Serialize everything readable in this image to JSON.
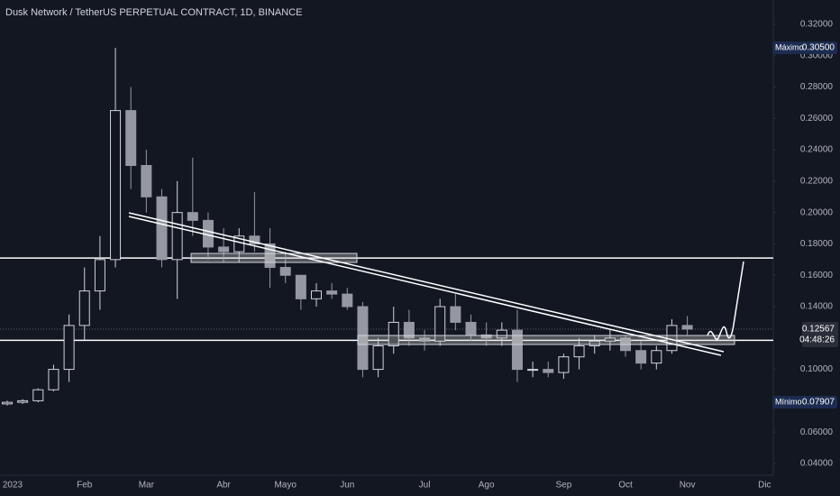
{
  "chart_data": {
    "type": "candlestick",
    "title": "Dusk Network / TetherUS PERPETUAL CONTRACT, 1D, BINANCE",
    "categories": [
      "2023",
      null,
      null,
      null,
      null,
      "Feb",
      null,
      null,
      null,
      "Mar",
      null,
      null,
      null,
      null,
      "Abr",
      null,
      null,
      null,
      "Mayo",
      null,
      null,
      null,
      "Jun",
      null,
      null,
      null,
      null,
      "Jul",
      null,
      null,
      null,
      "Ago",
      null,
      null,
      null,
      null,
      "Sep",
      null,
      null,
      null,
      "Oct",
      null,
      null,
      null,
      "Nov",
      null,
      null,
      null,
      null,
      "Dic"
    ],
    "open": [
      0.078,
      0.079,
      0.08,
      0.087,
      0.1,
      0.128,
      0.15,
      0.17,
      0.265,
      0.23,
      0.21,
      0.17,
      0.2,
      0.195,
      0.178,
      0.175,
      0.185,
      0.18,
      0.165,
      0.16,
      0.145,
      0.15,
      0.148,
      0.14,
      0.1,
      0.115,
      0.13,
      0.12,
      0.118,
      0.14,
      0.13,
      0.122,
      0.12,
      0.125,
      0.1,
      0.1,
      0.098,
      0.108,
      0.115,
      0.118,
      0.12,
      0.112,
      0.104,
      0.112,
      0.128,
      null,
      null,
      null,
      null,
      null
    ],
    "high": [
      0.08,
      0.081,
      0.088,
      0.103,
      0.135,
      0.165,
      0.185,
      0.305,
      0.28,
      0.24,
      0.215,
      0.22,
      0.235,
      0.2,
      0.19,
      0.19,
      0.213,
      0.19,
      0.175,
      0.16,
      0.155,
      0.155,
      0.152,
      0.143,
      0.12,
      0.14,
      0.138,
      0.125,
      0.145,
      0.148,
      0.135,
      0.13,
      0.13,
      0.138,
      0.105,
      0.105,
      0.11,
      0.12,
      0.122,
      0.125,
      0.122,
      0.118,
      0.115,
      0.132,
      0.134,
      null,
      null,
      null,
      null,
      null
    ],
    "low": [
      0.077,
      0.078,
      0.079,
      0.086,
      0.092,
      0.118,
      0.138,
      0.165,
      0.215,
      0.2,
      0.165,
      0.145,
      0.185,
      0.17,
      0.168,
      0.168,
      0.175,
      0.152,
      0.155,
      0.138,
      0.14,
      0.145,
      0.138,
      0.095,
      0.095,
      0.11,
      0.115,
      0.112,
      0.115,
      0.125,
      0.118,
      0.115,
      0.115,
      0.092,
      0.095,
      0.095,
      0.094,
      0.1,
      0.11,
      0.112,
      0.108,
      0.1,
      0.1,
      0.11,
      0.122,
      null,
      null,
      null,
      null,
      null
    ],
    "close": [
      0.079,
      0.08,
      0.087,
      0.1,
      0.128,
      0.15,
      0.17,
      0.265,
      0.23,
      0.21,
      0.17,
      0.2,
      0.195,
      0.178,
      0.175,
      0.185,
      0.18,
      0.165,
      0.16,
      0.145,
      0.15,
      0.148,
      0.14,
      0.1,
      0.115,
      0.13,
      0.12,
      0.118,
      0.14,
      0.13,
      0.122,
      0.12,
      0.125,
      0.1,
      0.1,
      0.098,
      0.108,
      0.115,
      0.118,
      0.12,
      0.112,
      0.104,
      0.112,
      0.128,
      0.12567,
      null,
      null,
      null,
      null,
      null
    ],
    "up_color": "#d1d4dc",
    "down_color": "#9598a1",
    "ylim": [
      0.0325,
      0.3355
    ],
    "yticks": [
      {
        "value": 0.32,
        "label": "0.32000"
      },
      {
        "value": 0.3,
        "label": "0.30000"
      },
      {
        "value": 0.28,
        "label": "0.28000"
      },
      {
        "value": 0.26,
        "label": "0.26000"
      },
      {
        "value": 0.24,
        "label": "0.24000"
      },
      {
        "value": 0.22,
        "label": "0.22000"
      },
      {
        "value": 0.2,
        "label": "0.20000"
      },
      {
        "value": 0.18,
        "label": "0.18000"
      },
      {
        "value": 0.16,
        "label": "0.16000"
      },
      {
        "value": 0.14,
        "label": "0.14000"
      },
      {
        "value": 0.1,
        "label": "0.10000"
      },
      {
        "value": 0.08,
        "label": "0.08000"
      },
      {
        "value": 0.06,
        "label": "0.06000"
      },
      {
        "value": 0.04,
        "label": "0.04000"
      }
    ],
    "hlines": [
      0.171,
      0.1185
    ],
    "last_price": 0.12567,
    "countdown": "04:48:26",
    "max": {
      "name": "Máximo",
      "value": 0.305,
      "value_label": "0.30500"
    },
    "min": {
      "name": "Mínimo",
      "value": 0.07907
    }
  }
}
